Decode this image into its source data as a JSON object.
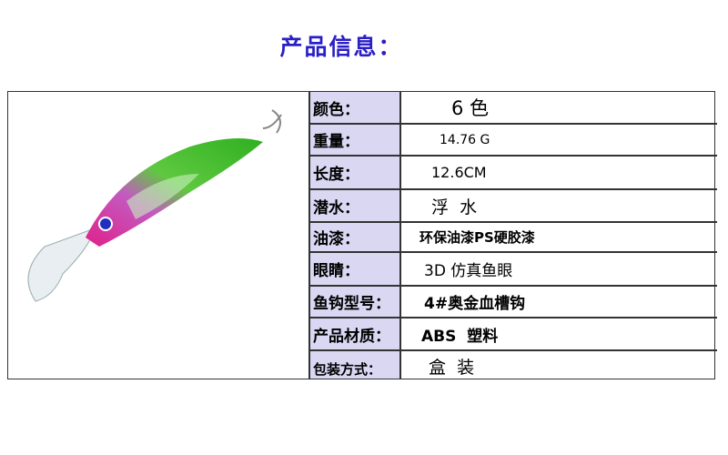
{
  "title": "产品信息：",
  "specs": [
    {
      "label": "颜色：",
      "value": "6 色"
    },
    {
      "label": "重量：",
      "value": "14.76 G"
    },
    {
      "label": "长度：",
      "value": "12.6CM"
    },
    {
      "label": "潜水：",
      "value": "浮  水"
    },
    {
      "label": "油漆：",
      "value": "环保油漆PS硬胶漆"
    },
    {
      "label": "眼睛：",
      "value": "3D 仿真鱼眼"
    },
    {
      "label": "鱼钩型号：",
      "value": "4#奥金血槽钩"
    },
    {
      "label": "产品材质：",
      "value": "ABS  塑料"
    },
    {
      "label": "包装方式：",
      "value": "盒  装"
    }
  ],
  "colors": {
    "title": "#2a1fc4",
    "label_bg": "#d9d7f2"
  }
}
